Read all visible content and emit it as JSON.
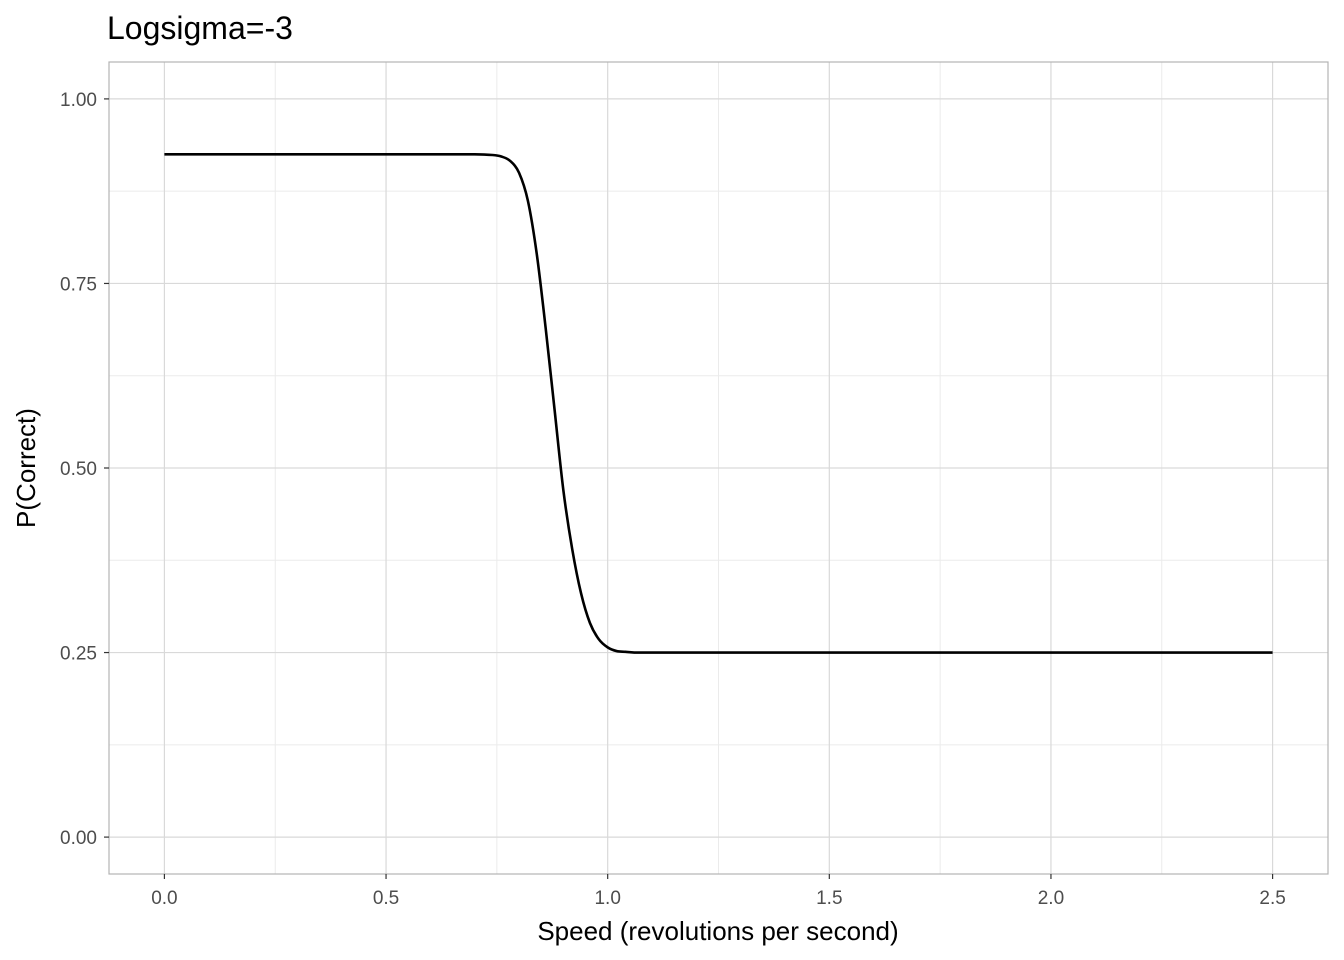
{
  "chart_data": {
    "type": "line",
    "title": "Logsigma=-3",
    "xlabel": "Speed (revolutions per second)",
    "ylabel": "P(Correct)",
    "xlim": [
      -0.125,
      2.625
    ],
    "ylim": [
      -0.05,
      1.05
    ],
    "x_ticks": [
      0.0,
      0.5,
      1.0,
      1.5,
      2.0,
      2.5
    ],
    "x_tick_labels": [
      "0.0",
      "0.5",
      "1.0",
      "1.5",
      "2.0",
      "2.5"
    ],
    "y_ticks": [
      0.0,
      0.25,
      0.5,
      0.75,
      1.0
    ],
    "y_tick_labels": [
      "0.00",
      "0.25",
      "0.50",
      "0.75",
      "1.00"
    ],
    "grid": true,
    "legend": "none",
    "series": [
      {
        "color": "#000000",
        "x": [
          0.0,
          0.1,
          0.2,
          0.3,
          0.4,
          0.5,
          0.6,
          0.7,
          0.74,
          0.76,
          0.78,
          0.8,
          0.82,
          0.84,
          0.86,
          0.88,
          0.9,
          0.92,
          0.94,
          0.96,
          0.98,
          1.0,
          1.02,
          1.04,
          1.06,
          1.1,
          1.2,
          1.5,
          2.0,
          2.5
        ],
        "y": [
          0.925,
          0.925,
          0.925,
          0.925,
          0.925,
          0.925,
          0.925,
          0.925,
          0.924,
          0.922,
          0.916,
          0.9,
          0.862,
          0.79,
          0.69,
          0.58,
          0.47,
          0.39,
          0.33,
          0.29,
          0.268,
          0.257,
          0.252,
          0.251,
          0.25,
          0.25,
          0.25,
          0.25,
          0.25,
          0.25
        ]
      }
    ]
  },
  "colors": {
    "line": "#000000",
    "grid_major": "#d9d9d9",
    "grid_minor": "#ebebeb",
    "panel_border": "#b3b3b3"
  }
}
